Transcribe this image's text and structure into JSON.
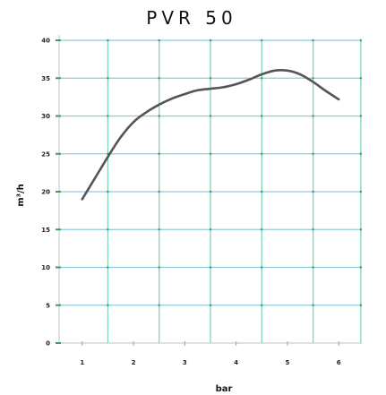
{
  "chart_data": {
    "type": "line",
    "title": "PVR 50",
    "xlabel": "bar",
    "ylabel": "m³/h",
    "xlim": [
      0.55,
      6.45
    ],
    "ylim": [
      0,
      40
    ],
    "x_ticks": [
      1,
      2,
      3,
      4,
      5,
      6
    ],
    "y_ticks": [
      0,
      5,
      10,
      15,
      20,
      25,
      30,
      35,
      40
    ],
    "grid": true,
    "series": [
      {
        "x": [
          1.0,
          1.25,
          1.5,
          1.75,
          2.0,
          2.25,
          2.5,
          2.75,
          3.0,
          3.25,
          3.5,
          3.75,
          4.0,
          4.25,
          4.5,
          4.75,
          5.0,
          5.25,
          5.5,
          5.75,
          6.0
        ],
        "y": [
          19.0,
          21.8,
          24.6,
          27.2,
          29.2,
          30.5,
          31.5,
          32.3,
          32.9,
          33.4,
          33.6,
          33.8,
          34.2,
          34.8,
          35.5,
          36.0,
          36.0,
          35.5,
          34.5,
          33.3,
          32.2
        ]
      }
    ],
    "colors": {
      "line": "#555555",
      "grid_vertical": "#7fd8b0",
      "grid_horizontal": "#8fcbe0",
      "ytick_marks": "#3a9e5e",
      "plot_background": "#ffffff"
    }
  }
}
